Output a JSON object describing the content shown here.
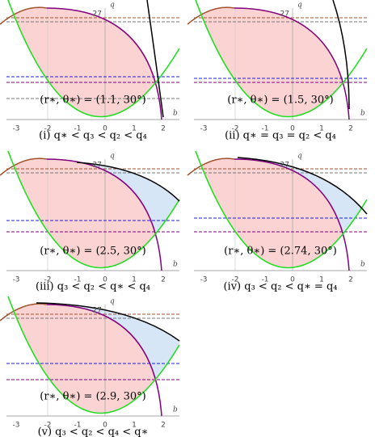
{
  "axis": {
    "x_label": "b",
    "y_label": "q",
    "y_tick": "27",
    "x_ticks": [
      "-3",
      "-2",
      "-1",
      "0",
      "1",
      "2"
    ]
  },
  "panels": [
    {
      "label": "(r∗, θ∗) = (1.1, 30°)",
      "caption": "(i) q∗ < q₃ < q₂ < q₄"
    },
    {
      "label": "(r∗, θ∗) = (1.5, 30°)",
      "caption": "(ii) q∗ = q₃ = q₂ < q₄"
    },
    {
      "label": "(r∗, θ∗) = (2.5, 30°)",
      "caption": "(iii) q₃ < q₂ < q∗ < q₄"
    },
    {
      "label": "(r∗, θ∗) = (2.74, 30°)",
      "caption": "(iv) q₃ < q₂ < q∗ = q₄"
    },
    {
      "label": "(r∗, θ∗) = (2.9, 30°)",
      "caption": "(v) q₃ < q₂ < q₄ < q∗"
    }
  ]
}
